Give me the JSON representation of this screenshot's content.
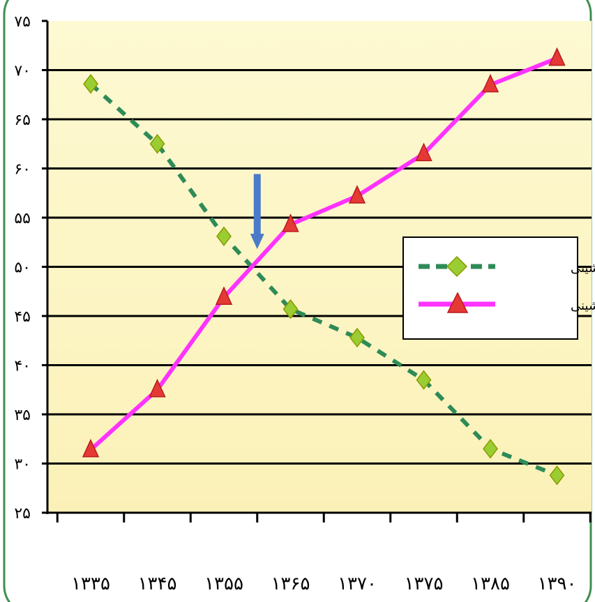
{
  "chart_data": {
    "type": "line",
    "title": "",
    "xlabel": "",
    "ylabel": "",
    "categories": [
      "۱۳۳۵",
      "۱۳۴۵",
      "۱۳۵۵",
      "۱۳۶۵",
      "۱۳۷۰",
      "۱۳۷۵",
      "۱۳۸۵",
      "۱۳۹۰"
    ],
    "y_tick_labels": [
      "۲۵",
      "۳۰",
      "۳۵",
      "۴۰",
      "۴۵",
      "۵۰",
      "۵۵",
      "۶۰",
      "۶۵",
      "۷۰",
      "۷۵"
    ],
    "ylim": [
      25,
      75
    ],
    "grid": true,
    "legend_position": "right",
    "series": [
      {
        "name": "روستانشینی",
        "values": [
          68.6,
          62.5,
          53.1,
          45.7,
          42.8,
          38.5,
          31.5,
          28.8
        ],
        "color": "#2e8b57",
        "marker": "diamond",
        "marker_color": "#9acd32",
        "line_style": "dashed"
      },
      {
        "name": "شهرنشینی",
        "values": [
          31.4,
          37.5,
          46.9,
          54.3,
          57.2,
          61.5,
          68.5,
          71.2
        ],
        "color": "#ff33ff",
        "marker": "triangle",
        "marker_color": "#e53935",
        "line_style": "solid"
      }
    ],
    "annotations": [
      {
        "type": "arrow",
        "color": "#4a7bc8",
        "points_to": {
          "x_between": [
            "۱۳۵۵",
            "۱۳۶۵"
          ],
          "y": 50
        }
      }
    ],
    "colors": {
      "plot_background": "#fdf7c3",
      "frame": "#3f8f4f",
      "gridline": "#000000"
    }
  }
}
